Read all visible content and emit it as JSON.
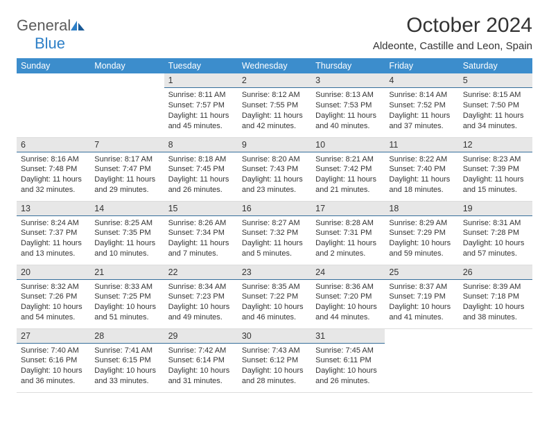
{
  "logo": {
    "general": "General",
    "blue": "Blue"
  },
  "title": "October 2024",
  "location": "Aldeonte, Castille and Leon, Spain",
  "colors": {
    "header_bg": "#3c8dcc",
    "daynum_bg": "#e7e7e7",
    "daynum_border": "#346d9a",
    "cell_border": "#dcdcdc",
    "text": "#333333",
    "logo_blue": "#2d7fc7",
    "logo_gray": "#5a5a5a"
  },
  "dayNames": [
    "Sunday",
    "Monday",
    "Tuesday",
    "Wednesday",
    "Thursday",
    "Friday",
    "Saturday"
  ],
  "firstDayOfWeek": 2,
  "daysInMonth": 31,
  "days": {
    "1": {
      "sunrise": "8:11 AM",
      "sunset": "7:57 PM",
      "daylight": "11 hours and 45 minutes."
    },
    "2": {
      "sunrise": "8:12 AM",
      "sunset": "7:55 PM",
      "daylight": "11 hours and 42 minutes."
    },
    "3": {
      "sunrise": "8:13 AM",
      "sunset": "7:53 PM",
      "daylight": "11 hours and 40 minutes."
    },
    "4": {
      "sunrise": "8:14 AM",
      "sunset": "7:52 PM",
      "daylight": "11 hours and 37 minutes."
    },
    "5": {
      "sunrise": "8:15 AM",
      "sunset": "7:50 PM",
      "daylight": "11 hours and 34 minutes."
    },
    "6": {
      "sunrise": "8:16 AM",
      "sunset": "7:48 PM",
      "daylight": "11 hours and 32 minutes."
    },
    "7": {
      "sunrise": "8:17 AM",
      "sunset": "7:47 PM",
      "daylight": "11 hours and 29 minutes."
    },
    "8": {
      "sunrise": "8:18 AM",
      "sunset": "7:45 PM",
      "daylight": "11 hours and 26 minutes."
    },
    "9": {
      "sunrise": "8:20 AM",
      "sunset": "7:43 PM",
      "daylight": "11 hours and 23 minutes."
    },
    "10": {
      "sunrise": "8:21 AM",
      "sunset": "7:42 PM",
      "daylight": "11 hours and 21 minutes."
    },
    "11": {
      "sunrise": "8:22 AM",
      "sunset": "7:40 PM",
      "daylight": "11 hours and 18 minutes."
    },
    "12": {
      "sunrise": "8:23 AM",
      "sunset": "7:39 PM",
      "daylight": "11 hours and 15 minutes."
    },
    "13": {
      "sunrise": "8:24 AM",
      "sunset": "7:37 PM",
      "daylight": "11 hours and 13 minutes."
    },
    "14": {
      "sunrise": "8:25 AM",
      "sunset": "7:35 PM",
      "daylight": "11 hours and 10 minutes."
    },
    "15": {
      "sunrise": "8:26 AM",
      "sunset": "7:34 PM",
      "daylight": "11 hours and 7 minutes."
    },
    "16": {
      "sunrise": "8:27 AM",
      "sunset": "7:32 PM",
      "daylight": "11 hours and 5 minutes."
    },
    "17": {
      "sunrise": "8:28 AM",
      "sunset": "7:31 PM",
      "daylight": "11 hours and 2 minutes."
    },
    "18": {
      "sunrise": "8:29 AM",
      "sunset": "7:29 PM",
      "daylight": "10 hours and 59 minutes."
    },
    "19": {
      "sunrise": "8:31 AM",
      "sunset": "7:28 PM",
      "daylight": "10 hours and 57 minutes."
    },
    "20": {
      "sunrise": "8:32 AM",
      "sunset": "7:26 PM",
      "daylight": "10 hours and 54 minutes."
    },
    "21": {
      "sunrise": "8:33 AM",
      "sunset": "7:25 PM",
      "daylight": "10 hours and 51 minutes."
    },
    "22": {
      "sunrise": "8:34 AM",
      "sunset": "7:23 PM",
      "daylight": "10 hours and 49 minutes."
    },
    "23": {
      "sunrise": "8:35 AM",
      "sunset": "7:22 PM",
      "daylight": "10 hours and 46 minutes."
    },
    "24": {
      "sunrise": "8:36 AM",
      "sunset": "7:20 PM",
      "daylight": "10 hours and 44 minutes."
    },
    "25": {
      "sunrise": "8:37 AM",
      "sunset": "7:19 PM",
      "daylight": "10 hours and 41 minutes."
    },
    "26": {
      "sunrise": "8:39 AM",
      "sunset": "7:18 PM",
      "daylight": "10 hours and 38 minutes."
    },
    "27": {
      "sunrise": "7:40 AM",
      "sunset": "6:16 PM",
      "daylight": "10 hours and 36 minutes."
    },
    "28": {
      "sunrise": "7:41 AM",
      "sunset": "6:15 PM",
      "daylight": "10 hours and 33 minutes."
    },
    "29": {
      "sunrise": "7:42 AM",
      "sunset": "6:14 PM",
      "daylight": "10 hours and 31 minutes."
    },
    "30": {
      "sunrise": "7:43 AM",
      "sunset": "6:12 PM",
      "daylight": "10 hours and 28 minutes."
    },
    "31": {
      "sunrise": "7:45 AM",
      "sunset": "6:11 PM",
      "daylight": "10 hours and 26 minutes."
    }
  },
  "labels": {
    "sunrise": "Sunrise: ",
    "sunset": "Sunset: ",
    "daylight": "Daylight: "
  }
}
